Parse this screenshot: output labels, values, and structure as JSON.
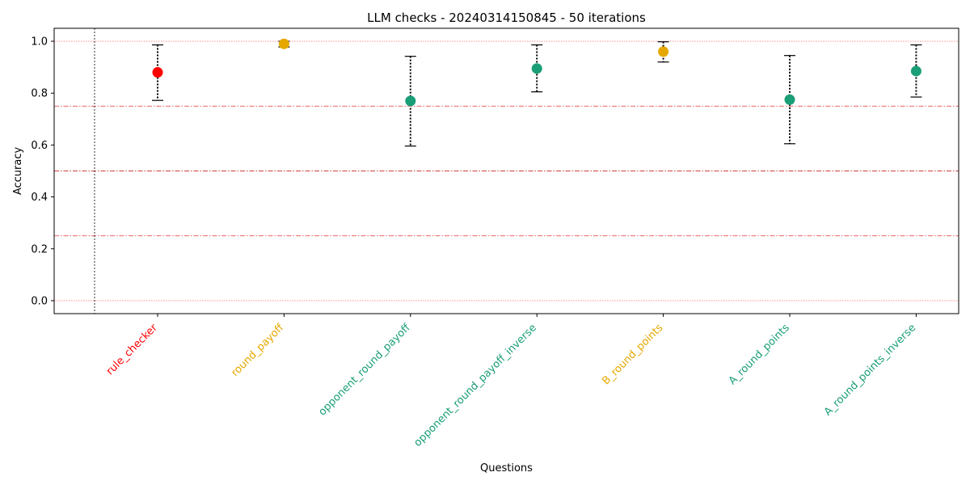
{
  "chart_data": {
    "type": "scatter",
    "title": "LLM checks - 20240314150845 - 50 iterations",
    "xlabel": "Questions",
    "ylabel": "Accuracy",
    "ylim": [
      -0.05,
      1.05
    ],
    "yticks": [
      0.0,
      0.2,
      0.4,
      0.6,
      0.8,
      1.0
    ],
    "ytick_labels": [
      "0.0",
      "0.2",
      "0.4",
      "0.6",
      "0.8",
      "1.0"
    ],
    "grid": false,
    "categories": [
      "rule_checker",
      "round_payoff",
      "opponent_round_payoff",
      "opponent_round_payoff_inverse",
      "B_round_points",
      "A_round_points",
      "A_round_points_inverse"
    ],
    "values": [
      0.88,
      0.99,
      0.77,
      0.895,
      0.96,
      0.775,
      0.885
    ],
    "error_low": [
      0.772,
      0.978,
      0.596,
      0.805,
      0.92,
      0.605,
      0.785
    ],
    "error_high": [
      0.986,
      1.0,
      0.942,
      0.986,
      0.998,
      0.945,
      0.986
    ],
    "colors": [
      "#ff0000",
      "#e6a800",
      "#1a9e77",
      "#1a9e77",
      "#e6a800",
      "#1a9e77",
      "#1a9e77"
    ],
    "reference_lines": [
      {
        "y": 1.0,
        "color": "#ff8080",
        "style": "dotted"
      },
      {
        "y": 0.75,
        "color": "#e03030",
        "style": "dashdot"
      },
      {
        "y": 0.5,
        "color": "#c00000",
        "style": "dashdot"
      },
      {
        "y": 0.25,
        "color": "#e03030",
        "style": "dashdot"
      },
      {
        "y": 0.0,
        "color": "#ff8080",
        "style": "dotted"
      }
    ]
  }
}
